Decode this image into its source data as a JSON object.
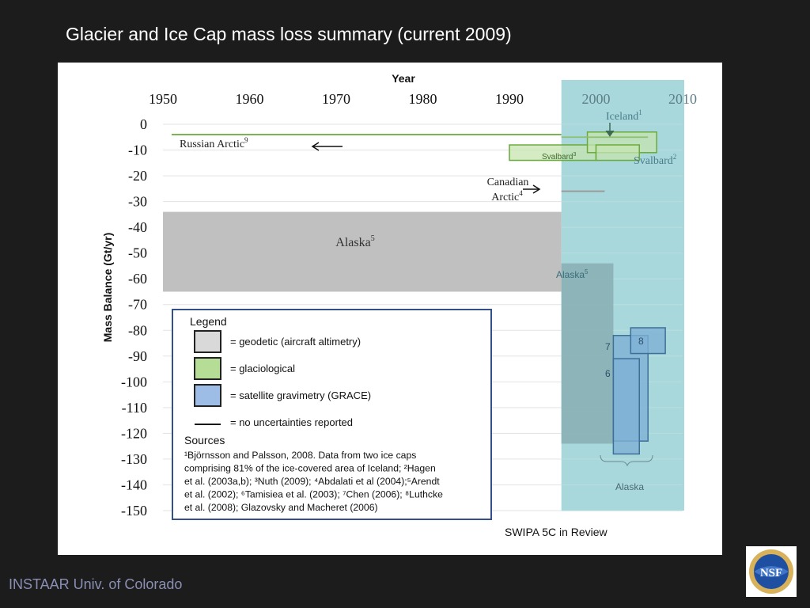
{
  "slide": {
    "title": "Glacier and Ice Cap mass loss summary (current 2009)",
    "footer": "INSTAAR Univ. of Colorado",
    "review_note": "SWIPA 5C in Review",
    "logo_text": "NSF"
  },
  "chart_data": {
    "type": "bar",
    "title": "",
    "xlabel": "Year",
    "ylabel": "Mass Balance (Gt/yr)",
    "xlim": [
      1950,
      2010
    ],
    "ylim": [
      -150,
      0
    ],
    "x_ticks": [
      1950,
      1960,
      1970,
      1980,
      1990,
      2000,
      2010
    ],
    "x_tick_labels": [
      "1950",
      "1960",
      "1970",
      "1980",
      "1990",
      "2000",
      "2010"
    ],
    "y_ticks": [
      0,
      -10,
      -20,
      -30,
      -40,
      -50,
      -60,
      -70,
      -80,
      -90,
      -100,
      -110,
      -120,
      -130,
      -140,
      -150
    ],
    "y_tick_labels": [
      "0",
      "-10",
      "-20",
      "-30",
      "-40",
      "-50",
      "-60",
      "-70",
      "-80",
      "-90",
      "-100",
      "-110",
      "-120",
      "-130",
      "-140",
      "-150"
    ],
    "highlight_region": {
      "x": [
        1996,
        2010
      ],
      "color": "#a8d8dc"
    },
    "segments": [
      {
        "name": "Russian Arctic",
        "x": [
          1951,
          1996
        ],
        "y": -4,
        "color": "#6aaa3c"
      },
      {
        "name": "Canadian Arctic",
        "x": [
          1996,
          2001
        ],
        "y": -26,
        "color": "#999999"
      },
      {
        "name": "Svalbard",
        "x": [
          1996,
          2006
        ],
        "y": -5,
        "color": "#8fbf6f"
      }
    ],
    "boxes": [
      {
        "label": "Alaska",
        "sup": "5",
        "method": "geodetic",
        "x": [
          1950,
          1996
        ],
        "y": [
          -34,
          -65
        ]
      },
      {
        "label": "Alaska",
        "sup": "5",
        "method": "geodetic",
        "x": [
          1996,
          2002
        ],
        "y": [
          -54,
          -124
        ]
      },
      {
        "label": "Svalbard",
        "sup": "3",
        "method": "glaciological",
        "x": [
          1990,
          2000
        ],
        "y": [
          -8,
          -14
        ]
      },
      {
        "label": "Iceland",
        "sup": "1",
        "method": "glaciological",
        "x": [
          1999,
          2007
        ],
        "y": [
          -3,
          -11
        ]
      },
      {
        "label": "Svalbard",
        "sup": "2",
        "method": "glaciological",
        "x": [
          2000,
          2005
        ],
        "y": [
          -8,
          -14
        ]
      },
      {
        "label": "7",
        "method": "satellite gravimetry (GRACE)",
        "x": [
          2002,
          2006
        ],
        "y": [
          -82,
          -123
        ]
      },
      {
        "label": "6",
        "method": "satellite gravimetry (GRACE)",
        "x": [
          2002,
          2005
        ],
        "y": [
          -91,
          -128
        ]
      },
      {
        "label": "8",
        "method": "satellite gravimetry (GRACE)",
        "x": [
          2004,
          2008
        ],
        "y": [
          -79,
          -89
        ]
      }
    ],
    "labels": {
      "russian_arctic": "Russian Arctic",
      "russian_arctic_sup": "9",
      "canadian_1": "Canadian",
      "canadian_2": "Arctic",
      "canadian_sup": "4",
      "iceland": "Iceland",
      "iceland_sup": "1",
      "svalbard_small": "Svalbard",
      "svalbard_small_sup": "3",
      "svalbard_right": "Svalbard",
      "svalbard_right_sup": "2",
      "alaska_big": "Alaska",
      "alaska_big_sup": "5",
      "alaska_right": "Alaska",
      "alaska_right_sup": "5",
      "alaska_bracket": "Alaska",
      "grace_7": "7",
      "grace_6": "6",
      "grace_8": "8"
    },
    "legend": {
      "title": "Legend",
      "items": [
        {
          "key": "= geodetic (aircraft altimetry)",
          "fill": "#d9d9d9",
          "stroke": "#222222"
        },
        {
          "key": "= glaciological",
          "fill": "#b6dd96",
          "stroke": "#222222"
        },
        {
          "key": "= satellite gravimetry (GRACE)",
          "fill": "#9dbce6",
          "stroke": "#222222"
        },
        {
          "key": "= no uncertainties reported",
          "line": true
        }
      ],
      "sources_title": "Sources",
      "sources_lines": [
        "¹Björnsson and Palsson, 2008. Data from two ice caps",
        "comprising 81% of the ice-covered area of Iceland; ²Hagen",
        "et al. (2003a,b); ³Nuth (2009); ⁴Abdalati et al (2004);⁵Arendt",
        "et al. (2002); ⁶Tamisiea et al. (2003); ⁷Chen (2006); ⁸Luthcke",
        "et al. (2008); Glazovsky and Macheret (2006)"
      ]
    },
    "colors": {
      "geodetic": "#c0c0c0",
      "glaciological": "#c6e4b0",
      "glaciological_stroke": "#6aaa3c",
      "grace": "#7eb2d6",
      "grace_stroke": "#3e6f98",
      "highlight": "#a8d8dc",
      "legend_border": "#33508a"
    }
  }
}
